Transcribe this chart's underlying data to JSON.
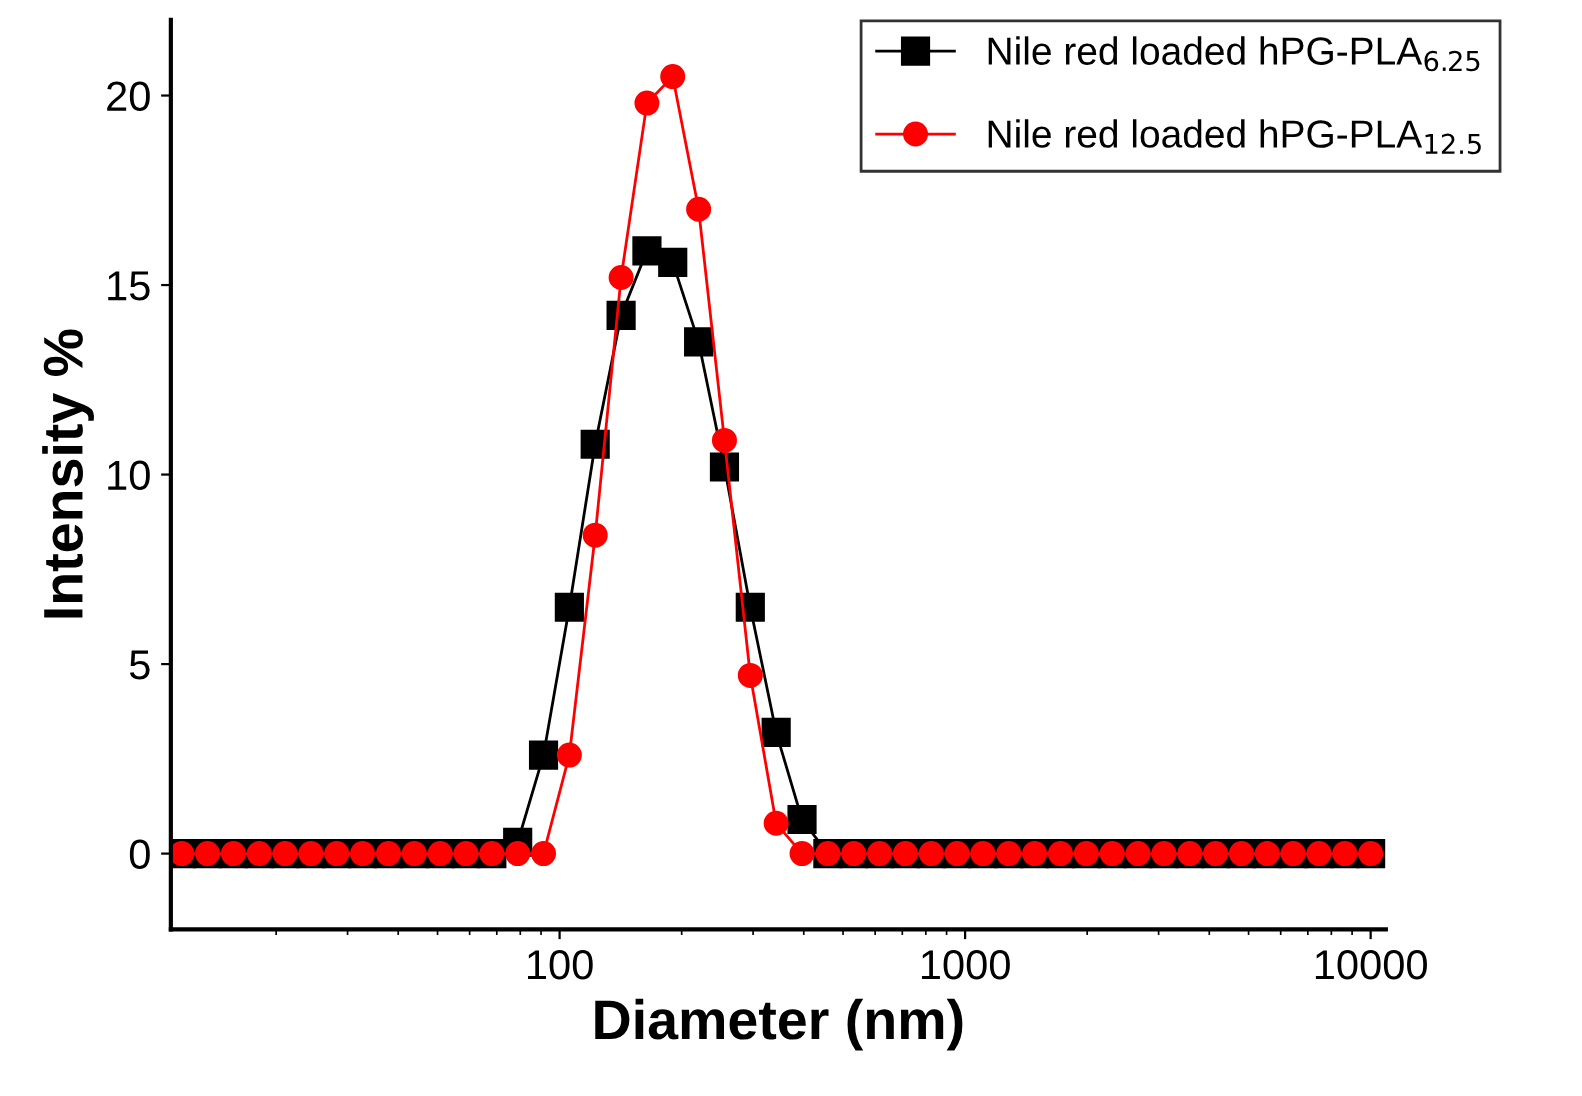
{
  "chart_data": {
    "type": "line",
    "xlabel": "Diameter (nm)",
    "ylabel": "Intensity %",
    "log": "x",
    "x": [
      11.7,
      13.54,
      15.69,
      18.17,
      21.04,
      24.36,
      28.21,
      32.67,
      37.84,
      43.82,
      50.75,
      58.77,
      68.06,
      78.82,
      91.28,
      105.7,
      122.4,
      141.8,
      164.2,
      190.1,
      220.2,
      255.0,
      295.3,
      342.0,
      396.1,
      458.7,
      531.2,
      615.1,
      712.4,
      825.0,
      955.4,
      1106,
      1281,
      1484,
      1718,
      1990,
      2305,
      2669,
      3091,
      3580,
      4145,
      4801,
      5560,
      6439,
      7456,
      8635,
      10000
    ],
    "series": [
      {
        "name": "Nile red loaded hPG-PLA$_{6.25}$",
        "color": "#000000",
        "marker": "square",
        "values": [
          0,
          0,
          0,
          0,
          0,
          0,
          0,
          0,
          0,
          0,
          0,
          0,
          0,
          0.3,
          2.6,
          6.5,
          10.8,
          14.2,
          15.9,
          15.6,
          13.5,
          10.2,
          6.5,
          3.2,
          0.9,
          0,
          0,
          0,
          0,
          0,
          0,
          0,
          0,
          0,
          0,
          0,
          0,
          0,
          0,
          0,
          0,
          0,
          0,
          0,
          0,
          0,
          0
        ]
      },
      {
        "name": "Nile red loaded hPG-PLA$_{12.5}$",
        "color": "#ff0000",
        "marker": "circle",
        "values": [
          0,
          0,
          0,
          0,
          0,
          0,
          0,
          0,
          0,
          0,
          0,
          0,
          0,
          0,
          0,
          2.6,
          8.4,
          15.2,
          19.8,
          20.5,
          17.0,
          10.9,
          4.7,
          0.8,
          0,
          0,
          0,
          0,
          0,
          0,
          0,
          0,
          0,
          0,
          0,
          0,
          0,
          0,
          0,
          0,
          0,
          0,
          0,
          0,
          0,
          0,
          0
        ]
      }
    ],
    "xlim": [
      11,
      10900
    ],
    "xticks": [
      100,
      1000,
      10000
    ],
    "ylim": [
      -2,
      22
    ],
    "yticks": [
      0,
      5,
      10,
      15,
      20
    ],
    "legend": "top right",
    "line_style": "solid",
    "grid": false
  }
}
